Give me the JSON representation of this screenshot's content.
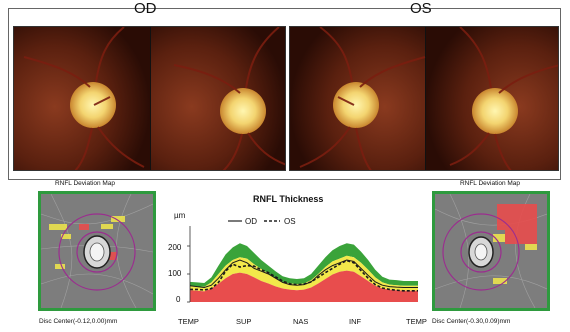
{
  "top": {
    "od_label": "OD",
    "os_label": "OS"
  },
  "left_map": {
    "title": "RNFL Deviation Map",
    "disc_center": "Disc Center(-0.12,0.00)mm"
  },
  "right_map": {
    "title": "RNFL Deviation Map",
    "disc_center": "Disc Center(-0.30,0.09)mm"
  },
  "colors": {
    "map_border": "#2e9a3e",
    "green_band": "#3aa33a",
    "yellow_band": "#f2e84a",
    "red_band": "#e84d4d",
    "circle": "#9b2d8f"
  },
  "chart_data": {
    "type": "line",
    "title": "RNFL Thickness",
    "ylabel": "µm",
    "y_ticks": [
      "200",
      "100",
      "0"
    ],
    "ylim": [
      0,
      250
    ],
    "categories": [
      "TEMP",
      "SUP",
      "NAS",
      "INF",
      "TEMP"
    ],
    "legend": {
      "od": "OD",
      "os": "OS"
    },
    "x": [
      0,
      8,
      16,
      24,
      32,
      40,
      48,
      56,
      64,
      72,
      80,
      88,
      96,
      104,
      112,
      120,
      128,
      136,
      144,
      152,
      160,
      168,
      176,
      184,
      192,
      200,
      208,
      216,
      224,
      232,
      240,
      248,
      256
    ],
    "series": [
      {
        "name": "OD",
        "style": "solid",
        "values": [
          58,
          55,
          52,
          60,
          85,
          115,
          140,
          150,
          140,
          120,
          110,
          100,
          85,
          70,
          62,
          60,
          62,
          72,
          95,
          115,
          130,
          140,
          150,
          145,
          120,
          95,
          72,
          60,
          55,
          53,
          52,
          52,
          52
        ]
      },
      {
        "name": "OS",
        "style": "dashed",
        "values": [
          45,
          45,
          43,
          48,
          70,
          110,
          135,
          125,
          130,
          128,
          115,
          105,
          90,
          75,
          65,
          62,
          64,
          72,
          88,
          105,
          120,
          135,
          148,
          140,
          112,
          85,
          62,
          50,
          45,
          42,
          40,
          40,
          40
        ]
      }
    ],
    "normative": {
      "p99": [
        72,
        70,
        68,
        88,
        130,
        170,
        195,
        210,
        200,
        175,
        150,
        130,
        110,
        92,
        85,
        82,
        85,
        100,
        130,
        160,
        185,
        200,
        210,
        205,
        180,
        150,
        115,
        90,
        80,
        78,
        75,
        75,
        75
      ],
      "p95": [
        58,
        56,
        54,
        70,
        100,
        130,
        150,
        160,
        155,
        135,
        118,
        102,
        85,
        72,
        66,
        64,
        66,
        78,
        100,
        125,
        145,
        155,
        165,
        160,
        140,
        115,
        88,
        70,
        62,
        60,
        58,
        58,
        58
      ],
      "p5": [
        42,
        40,
        38,
        48,
        65,
        85,
        100,
        105,
        100,
        88,
        75,
        66,
        56,
        48,
        44,
        42,
        44,
        52,
        66,
        82,
        98,
        108,
        112,
        108,
        92,
        75,
        58,
        48,
        44,
        42,
        40,
        40,
        40
      ]
    }
  }
}
